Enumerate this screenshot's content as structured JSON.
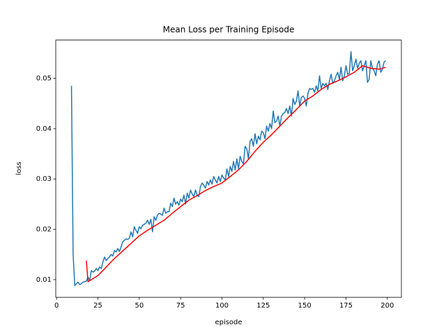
{
  "chart_data": {
    "type": "line",
    "title": "Mean Loss per Training Episode",
    "x_label": "episode",
    "y_label": "loss",
    "xlim": [
      -0.5,
      208.5
    ],
    "ylim": [
      0.0065,
      0.0576
    ],
    "xticks": [
      0,
      25,
      50,
      75,
      100,
      125,
      150,
      175,
      200
    ],
    "yticks": [
      0.01,
      0.02,
      0.03,
      0.04,
      0.05
    ],
    "series": [
      {
        "color": "#1f77b4",
        "x": [
          9,
          10,
          11,
          12,
          13,
          14,
          15,
          16,
          17,
          18,
          19,
          20,
          21,
          22,
          23,
          24,
          25,
          26,
          27,
          28,
          29,
          30,
          31,
          32,
          33,
          34,
          35,
          36,
          37,
          38,
          39,
          40,
          41,
          42,
          43,
          44,
          45,
          46,
          47,
          48,
          49,
          50,
          51,
          52,
          53,
          54,
          55,
          56,
          57,
          58,
          59,
          60,
          61,
          62,
          63,
          64,
          65,
          66,
          67,
          68,
          69,
          70,
          71,
          72,
          73,
          74,
          75,
          76,
          77,
          78,
          79,
          80,
          81,
          82,
          83,
          84,
          85,
          86,
          87,
          88,
          89,
          90,
          91,
          92,
          93,
          94,
          95,
          96,
          97,
          98,
          99,
          100,
          101,
          102,
          103,
          104,
          105,
          106,
          107,
          108,
          109,
          110,
          111,
          112,
          113,
          114,
          115,
          116,
          117,
          118,
          119,
          120,
          121,
          122,
          123,
          124,
          125,
          126,
          127,
          128,
          129,
          130,
          131,
          132,
          133,
          134,
          135,
          136,
          137,
          138,
          139,
          140,
          141,
          142,
          143,
          144,
          145,
          146,
          147,
          148,
          149,
          150,
          151,
          152,
          153,
          154,
          155,
          156,
          157,
          158,
          159,
          160,
          161,
          162,
          163,
          164,
          165,
          166,
          167,
          168,
          169,
          170,
          171,
          172,
          173,
          174,
          175,
          176,
          177,
          178,
          179,
          180,
          181,
          182,
          183,
          184,
          185,
          186,
          187,
          188,
          189,
          190,
          191,
          192,
          193,
          194,
          195,
          196,
          197,
          198,
          199
        ],
        "values": [
          0.0485,
          0.015,
          0.0088,
          0.0092,
          0.0095,
          0.009,
          0.0092,
          0.0095,
          0.0096,
          0.0097,
          0.0105,
          0.0098,
          0.0118,
          0.0115,
          0.0117,
          0.0122,
          0.0118,
          0.0125,
          0.0122,
          0.0135,
          0.0145,
          0.0138,
          0.0142,
          0.0145,
          0.015,
          0.0147,
          0.0158,
          0.0155,
          0.0162,
          0.0156,
          0.0165,
          0.0175,
          0.0178,
          0.0181,
          0.018,
          0.0182,
          0.0195,
          0.0185,
          0.0205,
          0.0198,
          0.0192,
          0.0205,
          0.0201,
          0.0208,
          0.021,
          0.0212,
          0.0218,
          0.021,
          0.022,
          0.0195,
          0.0225,
          0.0218,
          0.0228,
          0.0232,
          0.023,
          0.0228,
          0.0242,
          0.0232,
          0.0235,
          0.0235,
          0.0252,
          0.0245,
          0.0262,
          0.025,
          0.0255,
          0.0248,
          0.026,
          0.0255,
          0.0268,
          0.025,
          0.0272,
          0.0262,
          0.0278,
          0.027,
          0.0265,
          0.0278,
          0.0268,
          0.0265,
          0.0285,
          0.0292,
          0.0288,
          0.0282,
          0.0295,
          0.0288,
          0.0298,
          0.029,
          0.0305,
          0.0298,
          0.0292,
          0.0305,
          0.0295,
          0.0308,
          0.0302,
          0.0298,
          0.032,
          0.0305,
          0.0325,
          0.0315,
          0.0335,
          0.0318,
          0.034,
          0.032,
          0.0345,
          0.0335,
          0.033,
          0.0365,
          0.036,
          0.034,
          0.0375,
          0.038,
          0.0365,
          0.039,
          0.037,
          0.0385,
          0.0378,
          0.0395,
          0.0392,
          0.038,
          0.0405,
          0.0395,
          0.041,
          0.04,
          0.0435,
          0.0412,
          0.0415,
          0.0425,
          0.0405,
          0.0425,
          0.043,
          0.0432,
          0.044,
          0.043,
          0.0445,
          0.0425,
          0.046,
          0.0448,
          0.0455,
          0.0475,
          0.0445,
          0.0462,
          0.0465,
          0.046,
          0.0445,
          0.047,
          0.048,
          0.0478,
          0.048,
          0.0472,
          0.0485,
          0.0475,
          0.0505,
          0.048,
          0.049,
          0.0485,
          0.049,
          0.0478,
          0.0495,
          0.0508,
          0.049,
          0.0495,
          0.0505,
          0.0512,
          0.0498,
          0.0522,
          0.0495,
          0.0505,
          0.0525,
          0.0508,
          0.051,
          0.0553,
          0.0515,
          0.0525,
          0.0538,
          0.052,
          0.053,
          0.0535,
          0.0515,
          0.0525,
          0.0535,
          0.0492,
          0.0498,
          0.0535,
          0.052,
          0.0515,
          0.0505,
          0.0528,
          0.0535,
          0.0512,
          0.0518,
          0.0532,
          0.0535
        ]
      },
      {
        "color": "#ff0000",
        "x": [
          18,
          19,
          20,
          25,
          30,
          35,
          40,
          45,
          50,
          55,
          60,
          65,
          70,
          75,
          80,
          85,
          90,
          95,
          100,
          105,
          110,
          115,
          120,
          125,
          130,
          135,
          140,
          145,
          150,
          155,
          160,
          165,
          170,
          175,
          180,
          185,
          190,
          195,
          199
        ],
        "values": [
          0.0138,
          0.0096,
          0.0098,
          0.0108,
          0.0125,
          0.0142,
          0.0157,
          0.0172,
          0.0187,
          0.0198,
          0.0208,
          0.0218,
          0.0232,
          0.0245,
          0.0258,
          0.0267,
          0.0277,
          0.0285,
          0.0292,
          0.0305,
          0.0318,
          0.0335,
          0.0355,
          0.0373,
          0.0388,
          0.0405,
          0.0422,
          0.0438,
          0.0455,
          0.0465,
          0.0478,
          0.0488,
          0.0495,
          0.0503,
          0.0512,
          0.0525,
          0.052,
          0.0518,
          0.0522
        ]
      }
    ]
  }
}
